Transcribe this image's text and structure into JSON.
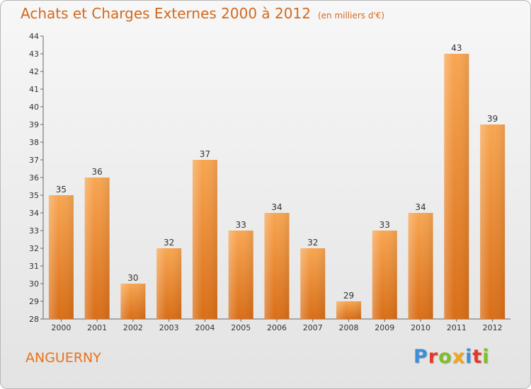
{
  "header": {
    "title": "Achats et Charges Externes 2000 à 2012",
    "unit": "(en milliers d'€)"
  },
  "footer": {
    "town": "ANGUERNY",
    "brand": "Proxiti",
    "brand_colors": [
      "#3a8fd9",
      "#e23a2a",
      "#7fbf2a",
      "#f2a51a",
      "#3a8fd9",
      "#e23a2a",
      "#7fbf2a"
    ]
  },
  "colors": {
    "bar_top": "#f8a652",
    "bar_bottom": "#d96e17",
    "accent_text": "#d2691e"
  },
  "chart_data": {
    "type": "bar",
    "title": "Achats et Charges Externes 2000 à 2012",
    "subtitle": "(en milliers d'€)",
    "xlabel": "",
    "ylabel": "",
    "categories": [
      "2000",
      "2001",
      "2002",
      "2003",
      "2004",
      "2005",
      "2006",
      "2007",
      "2008",
      "2009",
      "2010",
      "2011",
      "2012"
    ],
    "values": [
      35,
      36,
      30,
      32,
      37,
      33,
      34,
      32,
      29,
      33,
      34,
      43,
      39
    ],
    "ylim": [
      28,
      44
    ],
    "yticks": [
      28,
      29,
      30,
      31,
      32,
      33,
      34,
      35,
      36,
      37,
      38,
      39,
      40,
      41,
      42,
      43,
      44
    ],
    "grid": false,
    "legend": "none"
  }
}
